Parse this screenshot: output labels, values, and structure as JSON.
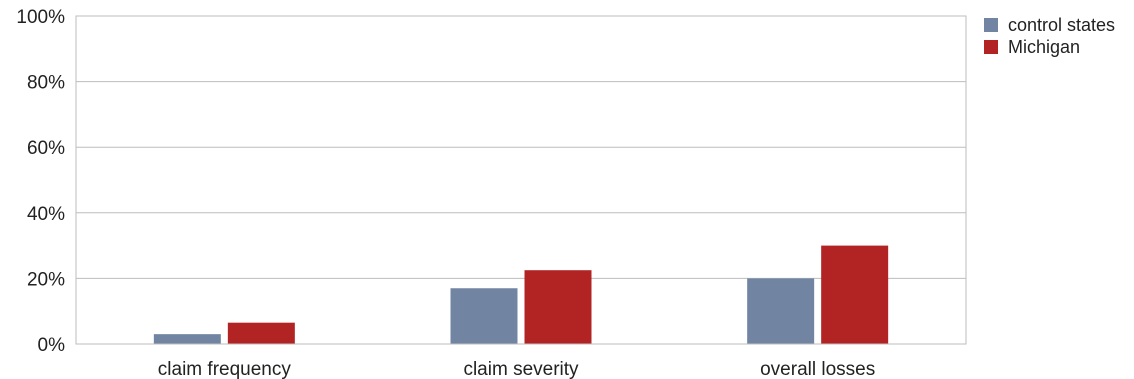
{
  "chart_data": {
    "type": "bar",
    "categories": [
      "claim frequency",
      "claim severity",
      "overall losses"
    ],
    "series": [
      {
        "name": "control states",
        "values": [
          3,
          17,
          20
        ],
        "color": "#7185a3"
      },
      {
        "name": "Michigan",
        "values": [
          6.5,
          22.5,
          30
        ],
        "color": "#b22424"
      }
    ],
    "ylim": [
      0,
      100
    ],
    "yticks": [
      0,
      20,
      40,
      60,
      80,
      100
    ],
    "ytick_labels": [
      "0%",
      "20%",
      "40%",
      "60%",
      "80%",
      "100%"
    ],
    "grid": true,
    "legend_position": "top-right"
  }
}
